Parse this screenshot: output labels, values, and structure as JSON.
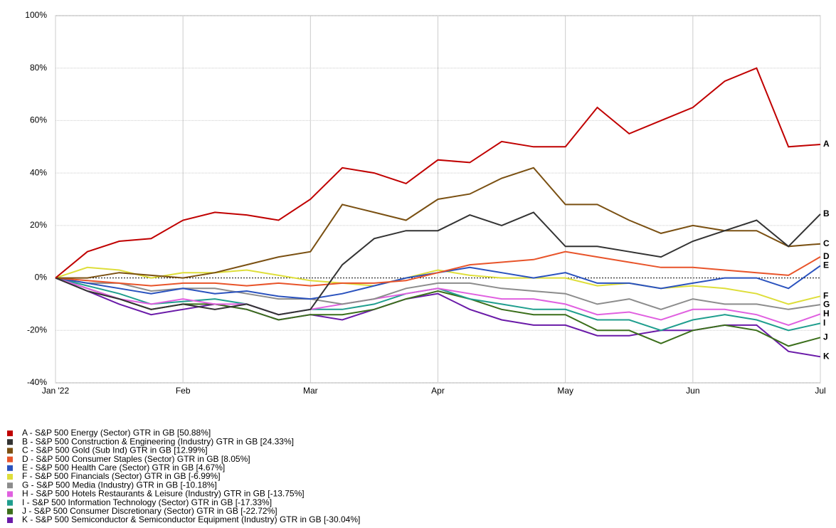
{
  "chart_data": {
    "type": "line",
    "x": [
      0,
      0.25,
      0.5,
      0.75,
      1,
      1.25,
      1.5,
      1.75,
      2,
      2.25,
      2.5,
      2.75,
      3,
      3.25,
      3.5,
      3.75,
      4,
      4.25,
      4.5,
      4.75,
      5,
      5.25,
      5.5,
      5.75,
      6
    ],
    "xlim": [
      0,
      6
    ],
    "xticks": [
      {
        "value": 0,
        "label": "Jan '22"
      },
      {
        "value": 1,
        "label": "Feb"
      },
      {
        "value": 2,
        "label": "Mar"
      },
      {
        "value": 3,
        "label": "Apr"
      },
      {
        "value": 4,
        "label": "May"
      },
      {
        "value": 5,
        "label": "Jun"
      },
      {
        "value": 6,
        "label": "Jul"
      }
    ],
    "ylim": [
      -40,
      100
    ],
    "yticks": [
      {
        "value": -40,
        "label": "-40%"
      },
      {
        "value": -20,
        "label": "-20%"
      },
      {
        "value": 0,
        "label": "0%"
      },
      {
        "value": 20,
        "label": "20%"
      },
      {
        "value": 40,
        "label": "40%"
      },
      {
        "value": 60,
        "label": "60%"
      },
      {
        "value": 80,
        "label": "80%"
      },
      {
        "value": 100,
        "label": "100%"
      }
    ],
    "grid": true,
    "series": [
      {
        "label": "A",
        "name": "A - S&P 500 Energy (Sector) GTR in GB [50.88%]",
        "color": "#c00000",
        "values": [
          0,
          10,
          14,
          15,
          22,
          25,
          24,
          22,
          30,
          42,
          40,
          36,
          45,
          44,
          52,
          50,
          50,
          65,
          55,
          60,
          65,
          75,
          80,
          50,
          50.88
        ]
      },
      {
        "label": "B",
        "name": "B - S&P 500 Construction & Engineering (Industry) GTR in GB [24.33%]",
        "color": "#333333",
        "values": [
          0,
          -5,
          -8,
          -12,
          -10,
          -12,
          -10,
          -14,
          -12,
          5,
          15,
          18,
          18,
          24,
          20,
          25,
          12,
          12,
          10,
          8,
          14,
          18,
          22,
          12,
          24.33
        ]
      },
      {
        "label": "C",
        "name": "C - S&P 500 Gold (Sub Ind) GTR in GB [12.99%]",
        "color": "#7a5012",
        "values": [
          0,
          0,
          2,
          1,
          0,
          2,
          5,
          8,
          10,
          28,
          25,
          22,
          30,
          32,
          38,
          42,
          28,
          28,
          22,
          17,
          20,
          18,
          18,
          12,
          12.99
        ]
      },
      {
        "label": "D",
        "name": "D - S&P 500 Consumer Staples (Sector) GTR in GB [8.05%]",
        "color": "#e8542a",
        "values": [
          0,
          -1,
          -2,
          -3,
          -2,
          -2,
          -3,
          -2,
          -3,
          -2,
          -2,
          -1,
          2,
          5,
          6,
          7,
          10,
          8,
          6,
          4,
          4,
          3,
          2,
          1,
          8.05
        ]
      },
      {
        "label": "E",
        "name": "E - S&P 500 Health Care (Sector) GTR in GB [4.67%]",
        "color": "#2a52be",
        "values": [
          0,
          -2,
          -4,
          -6,
          -4,
          -6,
          -5,
          -7,
          -8,
          -6,
          -3,
          0,
          2,
          4,
          2,
          0,
          2,
          -2,
          -2,
          -4,
          -2,
          0,
          0,
          -4,
          4.67
        ]
      },
      {
        "label": "F",
        "name": "F - S&P 500 Financials (Sector) GTR in GB [-6.99%]",
        "color": "#dede3a",
        "values": [
          0,
          4,
          3,
          0,
          2,
          2,
          3,
          1,
          -1,
          -2,
          -3,
          0,
          3,
          1,
          0,
          0,
          0,
          -3,
          -2,
          -4,
          -3,
          -4,
          -6,
          -10,
          -6.99
        ]
      },
      {
        "label": "G",
        "name": "G - S&P 500 Media (Industry) GTR in GB [-10.18%]",
        "color": "#8c8c8c",
        "values": [
          0,
          -2,
          -2,
          -5,
          -4,
          -4,
          -6,
          -8,
          -8,
          -10,
          -8,
          -4,
          -2,
          -2,
          -4,
          -5,
          -6,
          -10,
          -8,
          -12,
          -8,
          -10,
          -10,
          -12,
          -10.18
        ]
      },
      {
        "label": "H",
        "name": "H - S&P 500 Hotels Restaurants & Leisure (Industry) GTR in GB [-13.75%]",
        "color": "#e060e0",
        "values": [
          0,
          -4,
          -8,
          -10,
          -8,
          -10,
          -10,
          -14,
          -12,
          -10,
          -8,
          -6,
          -4,
          -6,
          -8,
          -8,
          -10,
          -14,
          -13,
          -16,
          -12,
          -12,
          -14,
          -18,
          -13.75
        ]
      },
      {
        "label": "I",
        "name": "I - S&P 500 Information Technology (Sector) GTR in GB [-17.33%]",
        "color": "#1f9e8e",
        "values": [
          0,
          -3,
          -6,
          -10,
          -9,
          -8,
          -10,
          -14,
          -12,
          -12,
          -10,
          -6,
          -4,
          -8,
          -10,
          -12,
          -12,
          -16,
          -16,
          -20,
          -16,
          -14,
          -16,
          -20,
          -17.33
        ]
      },
      {
        "label": "J",
        "name": "J - S&P 500 Consumer Discretionary (Sector) GTR in GB [-22.72%]",
        "color": "#3a6e1a",
        "values": [
          0,
          -4,
          -8,
          -12,
          -10,
          -10,
          -12,
          -16,
          -14,
          -14,
          -12,
          -8,
          -5,
          -8,
          -12,
          -14,
          -14,
          -20,
          -20,
          -25,
          -20,
          -18,
          -20,
          -26,
          -22.72
        ]
      },
      {
        "label": "K",
        "name": "K - S&P 500 Semiconductor & Semiconductor Equipment (Industry) GTR in GB [-30.04%]",
        "color": "#6a1aa8",
        "values": [
          0,
          -5,
          -10,
          -14,
          -12,
          -10,
          -12,
          -16,
          -14,
          -16,
          -12,
          -8,
          -6,
          -12,
          -16,
          -18,
          -18,
          -22,
          -22,
          -20,
          -20,
          -18,
          -18,
          -28,
          -30.04
        ]
      }
    ]
  }
}
